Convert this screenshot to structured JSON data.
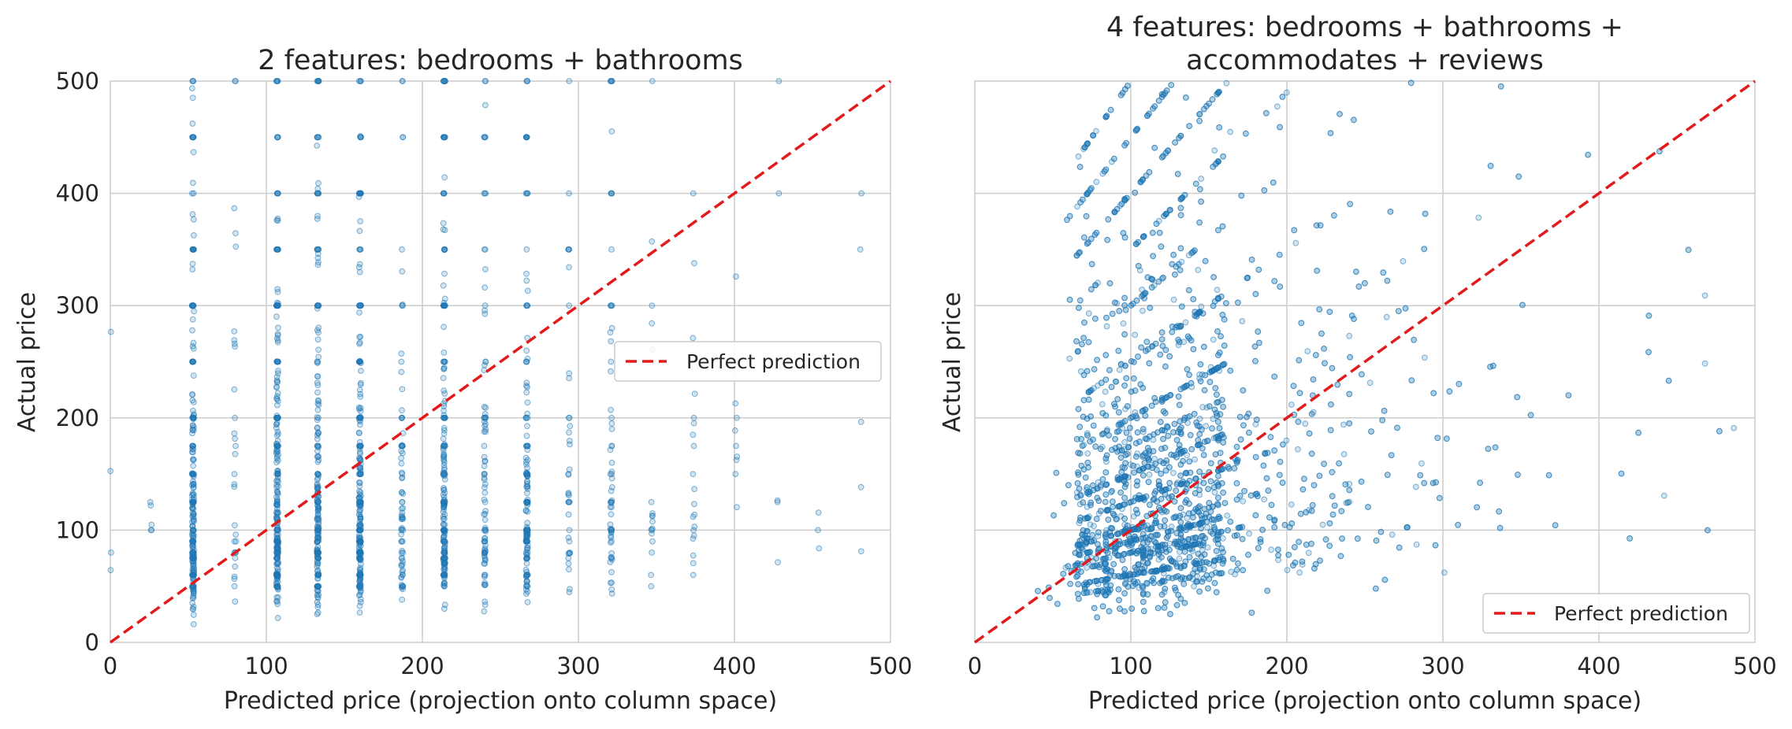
{
  "chart_data": [
    {
      "type": "scatter",
      "title": "2 features: bedrooms + bathrooms",
      "xlabel": "Predicted price (projection onto column space)",
      "ylabel": "Actual price",
      "xlim": [
        0,
        500
      ],
      "ylim": [
        0,
        500
      ],
      "xticks": [
        "0",
        "100",
        "200",
        "300",
        "400",
        "500"
      ],
      "yticks": [
        "0",
        "100",
        "200",
        "300",
        "400",
        "500"
      ],
      "grid": true,
      "point_color": "#1f77b4",
      "point_alpha": 0.2,
      "reference_line": {
        "label": "Perfect prediction",
        "color": "#e31a1c",
        "style": "dashed",
        "from": [
          0,
          0
        ],
        "to": [
          500,
          500
        ]
      },
      "legend_position": "center-right",
      "discrete_predicted_values": [
        0,
        26,
        53,
        80,
        107,
        133,
        160,
        187,
        214,
        240,
        267,
        294,
        321,
        347,
        374,
        401,
        428,
        454,
        481
      ],
      "relative_density": [
        0.02,
        0.02,
        1.0,
        0.12,
        1.0,
        0.85,
        1.0,
        0.3,
        0.85,
        0.35,
        0.6,
        0.15,
        0.25,
        0.07,
        0.08,
        0.04,
        0.02,
        0.01,
        0.02
      ]
    },
    {
      "type": "scatter",
      "title": "4 features: bedrooms + bathrooms + accommodates + reviews",
      "title_lines": [
        "4 features: bedrooms + bathrooms +",
        "accommodates + reviews"
      ],
      "xlabel": "Predicted price (projection onto column space)",
      "ylabel": "Actual price",
      "xlim": [
        0,
        500
      ],
      "ylim": [
        0,
        500
      ],
      "xticks": [
        "0",
        "100",
        "200",
        "300",
        "400",
        "500"
      ],
      "yticks": [],
      "grid": true,
      "point_color": "#1f77b4",
      "point_alpha": 0.2,
      "reference_line": {
        "label": "Perfect prediction",
        "color": "#e31a1c",
        "style": "dashed",
        "from": [
          0,
          0
        ],
        "to": [
          500,
          500
        ]
      },
      "legend_position": "lower-right",
      "predicted_range": [
        25,
        500
      ],
      "densest_predicted_range": [
        65,
        160
      ],
      "common_actual_prices": [
        50,
        60,
        75,
        80,
        90,
        100,
        125,
        150,
        175,
        200,
        250,
        300,
        350,
        400,
        450,
        500
      ]
    }
  ]
}
